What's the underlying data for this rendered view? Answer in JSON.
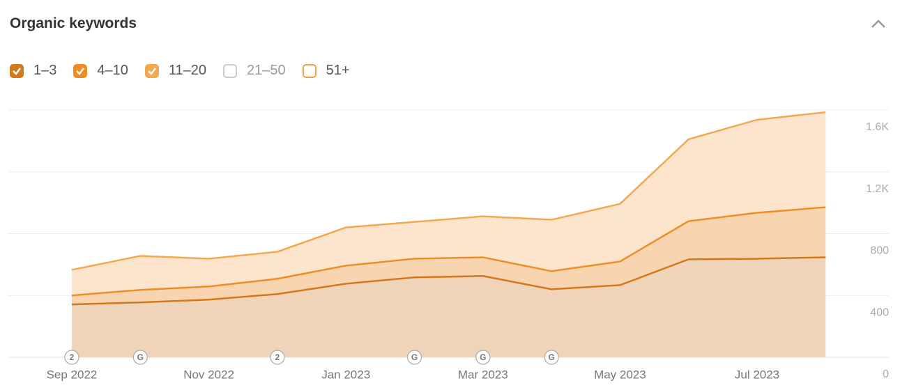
{
  "chart_data": {
    "type": "stacked_area",
    "title": "Organic keywords",
    "categories": [
      "Sep 2022",
      null,
      "Nov 2022",
      null,
      "Jan 2023",
      null,
      "Mar 2023",
      null,
      "May 2023",
      null,
      "Jul 2023",
      null
    ],
    "markers": [
      "2",
      "G",
      null,
      "2",
      null,
      "G",
      "G",
      "G",
      null,
      null,
      null,
      null
    ],
    "series": [
      {
        "name": "1–3",
        "color": "#d4781a",
        "fill": "#f0d4ba",
        "values": [
          342,
          355,
          373,
          409,
          476,
          517,
          526,
          440,
          467,
          634,
          638,
          647
        ]
      },
      {
        "name": "4–10",
        "color": "#ee8d25",
        "fill": "#f8d5b0",
        "values": [
          58,
          81,
          85,
          99,
          117,
          121,
          121,
          117,
          153,
          247,
          297,
          324
        ]
      },
      {
        "name": "11–20",
        "color": "#f3a850",
        "fill": "#fde5cd",
        "values": [
          166,
          220,
          180,
          175,
          247,
          238,
          265,
          333,
          373,
          530,
          602,
          615
        ]
      }
    ],
    "hidden_series": [
      {
        "name": "21–50",
        "color": "#cccccc"
      },
      {
        "name": "51+",
        "color": "#f0a040"
      }
    ],
    "ylim": [
      0,
      1600
    ],
    "yticks": [
      0,
      400,
      800,
      {
        "value": 1200,
        "label": "1.2K"
      },
      {
        "value": 1600,
        "label": "1.6K"
      }
    ],
    "grid": true
  }
}
